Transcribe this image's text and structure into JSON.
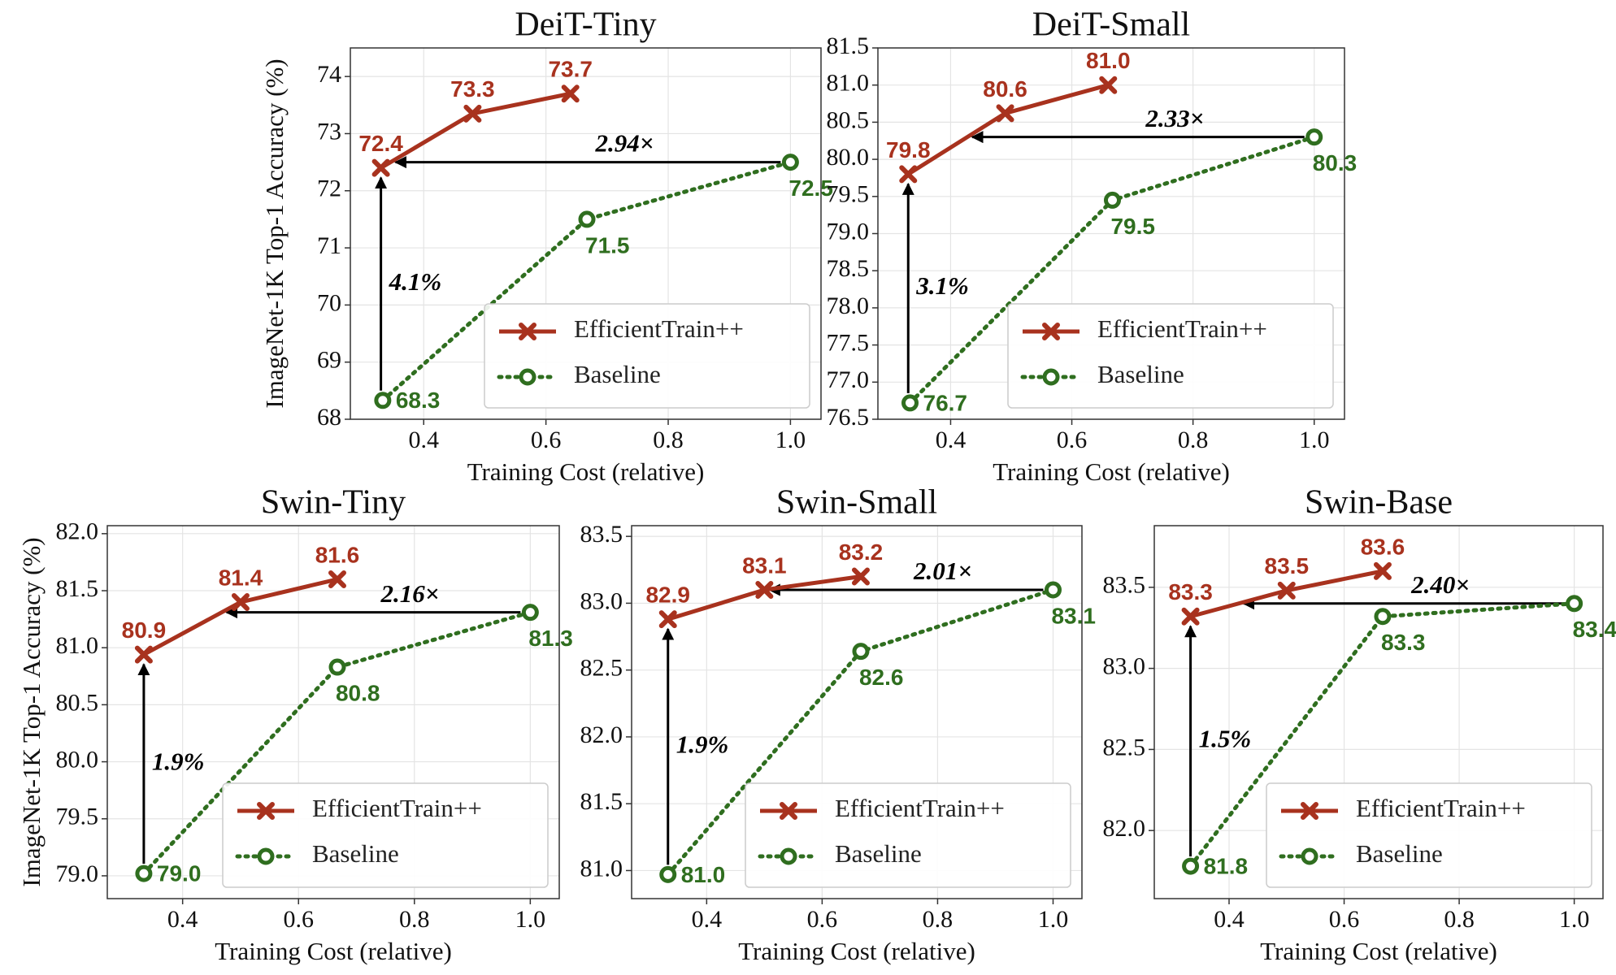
{
  "chart_data": [
    {
      "type": "line",
      "title": "DeiT-Tiny",
      "xlabel": "Training Cost (relative)",
      "ylabel": "ImageNet-1K Top-1 Accuracy (%)",
      "xlim": [
        0.28,
        1.05
      ],
      "xticks": [
        0.4,
        0.6,
        0.8,
        {
          "value": 1.0,
          "label": "1.0"
        }
      ],
      "ylim": [
        68,
        74.5
      ],
      "yticks": [
        68,
        69,
        70,
        71,
        72,
        73,
        74
      ],
      "grid": true,
      "legend": "lower right",
      "series": [
        {
          "name": "EfficientTrain++",
          "color": "#a8321e",
          "x": [
            0.33,
            0.48,
            0.64
          ],
          "values": [
            72.4,
            73.35,
            73.7
          ],
          "value_labels": [
            "72.4",
            "73.3",
            "73.7"
          ]
        },
        {
          "name": "Baseline",
          "color": "#2f6e1f",
          "x": [
            0.333,
            0.667,
            1.0
          ],
          "values": [
            68.33,
            71.5,
            72.5
          ],
          "value_labels": [
            "68.3",
            "71.5",
            "72.5"
          ]
        }
      ],
      "annotations": {
        "speedup": "2.94×",
        "gain": "4.1%"
      }
    },
    {
      "type": "line",
      "title": "DeiT-Small",
      "xlabel": "Training Cost (relative)",
      "xlim": [
        0.28,
        1.05
      ],
      "xticks": [
        0.4,
        0.6,
        0.8,
        {
          "value": 1.0,
          "label": "1.0"
        }
      ],
      "ylim": [
        76.5,
        81.5
      ],
      "yticks": [
        76.5,
        {
          "value": 77,
          "label": "77.0"
        },
        77.5,
        {
          "value": 78,
          "label": "78.0"
        },
        78.5,
        {
          "value": 79,
          "label": "79.0"
        },
        79.5,
        {
          "value": 80,
          "label": "80.0"
        },
        80.5,
        {
          "value": 81,
          "label": "81.0"
        },
        81.5
      ],
      "grid": true,
      "legend": "lower right",
      "series": [
        {
          "name": "EfficientTrain++",
          "color": "#a8321e",
          "x": [
            0.33,
            0.49,
            0.66
          ],
          "values": [
            79.8,
            80.62,
            81.0
          ],
          "value_labels": [
            "79.8",
            "80.6",
            "81.0"
          ]
        },
        {
          "name": "Baseline",
          "color": "#2f6e1f",
          "x": [
            0.333,
            0.667,
            1.0
          ],
          "values": [
            76.72,
            79.45,
            80.3
          ],
          "value_labels": [
            "76.7",
            "79.5",
            "80.3"
          ]
        }
      ],
      "annotations": {
        "speedup": "2.33×",
        "gain": "3.1%"
      }
    },
    {
      "type": "line",
      "title": "Swin-Tiny",
      "xlabel": "Training Cost (relative)",
      "ylabel": "ImageNet-1K Top-1 Accuracy (%)",
      "xlim": [
        0.27,
        1.05
      ],
      "xticks": [
        0.4,
        0.6,
        0.8,
        {
          "value": 1.0,
          "label": "1.0"
        }
      ],
      "ylim": [
        78.8,
        82.07
      ],
      "yticks": [
        {
          "value": 79,
          "label": "79.0"
        },
        79.5,
        {
          "value": 80,
          "label": "80.0"
        },
        80.5,
        {
          "value": 81,
          "label": "81.0"
        },
        81.5,
        {
          "value": 82,
          "label": "82.0"
        }
      ],
      "grid": true,
      "legend": "lower right",
      "series": [
        {
          "name": "EfficientTrain++",
          "color": "#a8321e",
          "x": [
            0.333,
            0.5,
            0.667
          ],
          "values": [
            80.94,
            81.4,
            81.6
          ],
          "value_labels": [
            "80.9",
            "81.4",
            "81.6"
          ]
        },
        {
          "name": "Baseline",
          "color": "#2f6e1f",
          "x": [
            0.333,
            0.667,
            1.0
          ],
          "values": [
            79.02,
            80.83,
            81.31
          ],
          "value_labels": [
            "79.0",
            "80.8",
            "81.3"
          ]
        }
      ],
      "annotations": {
        "speedup": "2.16×",
        "gain": "1.9%"
      }
    },
    {
      "type": "line",
      "title": "Swin-Small",
      "xlabel": "Training Cost (relative)",
      "xlim": [
        0.27,
        1.05
      ],
      "xticks": [
        0.4,
        0.6,
        0.8,
        {
          "value": 1.0,
          "label": "1.0"
        }
      ],
      "ylim": [
        80.79,
        83.58
      ],
      "yticks": [
        {
          "value": 81,
          "label": "81.0"
        },
        81.5,
        {
          "value": 82,
          "label": "82.0"
        },
        82.5,
        {
          "value": 83,
          "label": "83.0"
        },
        83.5
      ],
      "grid": true,
      "legend": "lower right",
      "series": [
        {
          "name": "EfficientTrain++",
          "color": "#a8321e",
          "x": [
            0.333,
            0.5,
            0.667
          ],
          "values": [
            82.88,
            83.1,
            83.2
          ],
          "value_labels": [
            "82.9",
            "83.1",
            "83.2"
          ]
        },
        {
          "name": "Baseline",
          "color": "#2f6e1f",
          "x": [
            0.333,
            0.667,
            1.0
          ],
          "values": [
            80.97,
            82.64,
            83.1
          ],
          "value_labels": [
            "81.0",
            "82.6",
            "83.1"
          ]
        }
      ],
      "annotations": {
        "speedup": "2.01×",
        "gain": "1.9%"
      }
    },
    {
      "type": "line",
      "title": "Swin-Base",
      "xlabel": "Training Cost (relative)",
      "xlim": [
        0.27,
        1.05
      ],
      "xticks": [
        0.4,
        0.6,
        0.8,
        {
          "value": 1.0,
          "label": "1.0"
        }
      ],
      "ylim": [
        81.58,
        83.88
      ],
      "yticks": [
        {
          "value": 82,
          "label": "82.0"
        },
        82.5,
        {
          "value": 83,
          "label": "83.0"
        },
        83.5
      ],
      "grid": true,
      "legend": "lower right",
      "series": [
        {
          "name": "EfficientTrain++",
          "color": "#a8321e",
          "x": [
            0.333,
            0.5,
            0.667
          ],
          "values": [
            83.32,
            83.48,
            83.6
          ],
          "value_labels": [
            "83.3",
            "83.5",
            "83.6"
          ]
        },
        {
          "name": "Baseline",
          "color": "#2f6e1f",
          "x": [
            0.333,
            0.667,
            1.0
          ],
          "values": [
            81.78,
            83.32,
            83.4
          ],
          "value_labels": [
            "81.8",
            "83.3",
            "83.4"
          ]
        }
      ],
      "annotations": {
        "speedup": "2.40×",
        "gain": "1.5%"
      }
    }
  ]
}
